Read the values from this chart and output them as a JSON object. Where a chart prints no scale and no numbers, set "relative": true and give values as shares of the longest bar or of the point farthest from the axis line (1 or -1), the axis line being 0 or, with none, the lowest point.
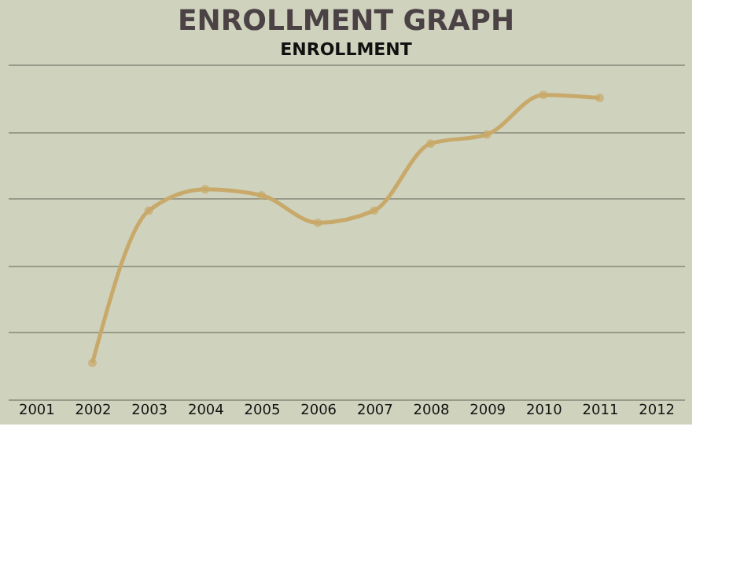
{
  "chart_data": {
    "type": "line",
    "title": "ENROLLMENT GRAPH",
    "subtitle": "ENROLLMENT",
    "categories": [
      "2001",
      "2002",
      "2003",
      "2004",
      "2005",
      "2006",
      "2007",
      "2008",
      "2009",
      "2010",
      "2011",
      "2012"
    ],
    "series": [
      {
        "color": "#c8a96a",
        "values": [
          null,
          0.12,
          0.62,
          0.69,
          0.67,
          0.58,
          0.62,
          0.84,
          0.87,
          1,
          0.99,
          null
        ]
      }
    ],
    "relative": true,
    "marker": "circle",
    "grid": "y",
    "line_style": "solid"
  }
}
